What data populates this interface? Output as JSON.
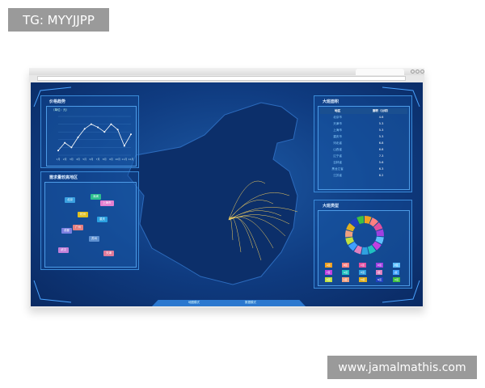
{
  "watermark_top": "TG: MYYJJPP",
  "watermark_bottom": "www.jamalmathis.com",
  "dashboard": {
    "price_panel": {
      "title": "价格趋势",
      "unit": "（单位：元）",
      "chart_data": {
        "type": "line",
        "categories": [
          "1月",
          "2月",
          "3月",
          "4月",
          "5月",
          "6月",
          "7月",
          "8月",
          "9月",
          "10月",
          "11月",
          "12月"
        ],
        "values": [
          3.6,
          4.6,
          4.0,
          5.3,
          6.4,
          7.0,
          6.6,
          6.0,
          7.0,
          6.3,
          4.2,
          5.7
        ],
        "grid": true,
        "ylim": [
          3,
          8
        ]
      }
    },
    "region_panel": {
      "title": "需求量较高地区",
      "tags": [
        {
          "label": "北京",
          "color": "#3aa0e0"
        },
        {
          "label": "深圳",
          "color": "#2dbf8f"
        },
        {
          "label": "上海市",
          "color": "#e57fd0"
        },
        {
          "label": "杭州",
          "color": "#e0c020"
        },
        {
          "label": "重庆",
          "color": "#2aa0e0"
        },
        {
          "label": "广州",
          "color": "#e57f7f"
        },
        {
          "label": "成都",
          "color": "#7b7fe0"
        },
        {
          "label": "苏州",
          "color": "#5c8fd0"
        },
        {
          "label": "武汉",
          "color": "#c27fd8"
        },
        {
          "label": "天津",
          "color": "#e07a9a"
        }
      ]
    },
    "table_panel": {
      "title": "大班面积",
      "headers": [
        "地区",
        "面积（公顷）"
      ],
      "rows": [
        [
          "北京市",
          "4.6"
        ],
        [
          "天津市",
          "5.3"
        ],
        [
          "上海市",
          "5.3"
        ],
        [
          "重庆市",
          "5.3"
        ],
        [
          "河北省",
          "6.8"
        ],
        [
          "山西省",
          "6.8"
        ],
        [
          "辽宁省",
          "7.3"
        ],
        [
          "吉林省",
          "5.6"
        ],
        [
          "黑龙江省",
          "6.3"
        ],
        [
          "江苏省",
          "6.2"
        ]
      ]
    },
    "donut_panel": {
      "title": "大班类型",
      "chart_data": {
        "type": "pie",
        "values": [
          1,
          1,
          1,
          1,
          1,
          1,
          1,
          1,
          1,
          1,
          1,
          1,
          1,
          1,
          1
        ],
        "colors": [
          "#f0a020",
          "#ff8080",
          "#e050a0",
          "#a040e0",
          "#60c0ff",
          "#c040e0",
          "#20c0c0",
          "#30a0e0",
          "#e080c0",
          "#40a0ff",
          "#c0e040",
          "#f0a080",
          "#e0b020",
          "#2040c0",
          "#40c040"
        ]
      },
      "legend": [
        "A区",
        "B区",
        "C区",
        "D区",
        "E区",
        "F区",
        "G区",
        "H区",
        "I区",
        "J区",
        "K区",
        "L区",
        "M区",
        "N区",
        "O区"
      ]
    },
    "bottom_tabs": [
      "地图模式",
      "数据模式"
    ]
  }
}
